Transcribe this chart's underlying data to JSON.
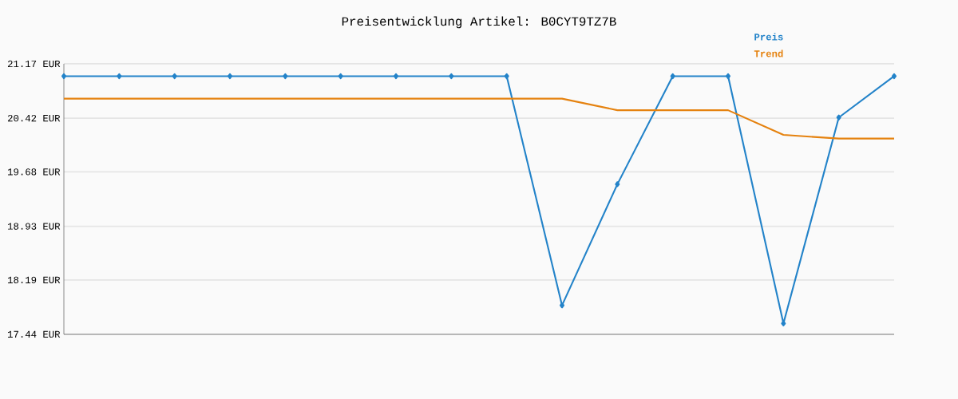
{
  "chart_data": {
    "type": "line",
    "title": "Preisentwicklung Artikel: B0CYT9TZ7B",
    "categories": [
      null,
      null,
      null,
      null,
      null,
      null,
      null,
      null,
      null,
      null,
      null,
      null,
      null,
      null,
      null,
      null
    ],
    "series": [
      {
        "name": "Preis",
        "color": "#2383c9",
        "marker": "diamond",
        "values": [
          21.0,
          21.0,
          21.0,
          21.0,
          21.0,
          21.0,
          21.0,
          21.0,
          21.0,
          17.84,
          19.51,
          21.0,
          21.0,
          17.59,
          20.43,
          21.0
        ]
      },
      {
        "name": "Trend",
        "color": "#e5820f",
        "values": [
          20.69,
          20.69,
          20.69,
          20.69,
          20.69,
          20.69,
          20.69,
          20.69,
          20.69,
          20.69,
          20.53,
          20.53,
          20.53,
          20.19,
          20.14,
          20.14
        ]
      }
    ],
    "ylim": [
      17.44,
      21.17
    ],
    "yticks": [
      {
        "value": 17.44,
        "label": "17.44 EUR"
      },
      {
        "value": 18.19,
        "label": "18.19 EUR"
      },
      {
        "value": 18.93,
        "label": "18.93 EUR"
      },
      {
        "value": 19.68,
        "label": "19.68 EUR"
      },
      {
        "value": 20.42,
        "label": "20.42 EUR"
      },
      {
        "value": 21.17,
        "label": "21.17 EUR"
      }
    ],
    "grid": "y",
    "legend": "top right",
    "tick_labels": "y"
  }
}
